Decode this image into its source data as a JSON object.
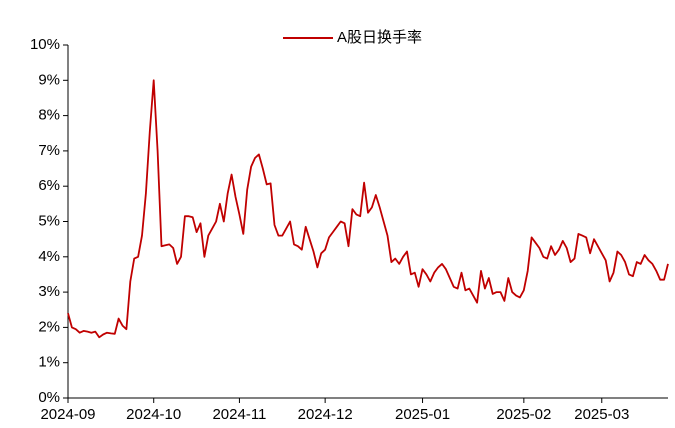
{
  "chart_data": {
    "type": "line",
    "categories": [
      "2024-09",
      null,
      null,
      null,
      null,
      null,
      null,
      null,
      null,
      null,
      null,
      null,
      null,
      null,
      null,
      null,
      null,
      null,
      null,
      null,
      null,
      null,
      "2024-10",
      null,
      null,
      null,
      null,
      null,
      null,
      null,
      null,
      null,
      null,
      null,
      null,
      null,
      null,
      null,
      null,
      null,
      null,
      null,
      null,
      null,
      "2024-11",
      null,
      null,
      null,
      null,
      null,
      null,
      null,
      null,
      null,
      null,
      null,
      null,
      null,
      null,
      null,
      null,
      null,
      null,
      null,
      null,
      null,
      "2024-12",
      null,
      null,
      null,
      null,
      null,
      null,
      null,
      null,
      null,
      null,
      null,
      null,
      null,
      null,
      null,
      null,
      null,
      null,
      null,
      null,
      null,
      null,
      null,
      null,
      "2025-01",
      null,
      null,
      null,
      null,
      null,
      null,
      null,
      null,
      null,
      null,
      null,
      null,
      null,
      null,
      null,
      null,
      null,
      null,
      null,
      null,
      null,
      null,
      null,
      null,
      null,
      "2025-02",
      null,
      null,
      null,
      null,
      null,
      null,
      null,
      null,
      null,
      null,
      null,
      null,
      null,
      null,
      null,
      null,
      null,
      null,
      null,
      "2025-03",
      null,
      null,
      null,
      null,
      null,
      null,
      null,
      null,
      null,
      null,
      null,
      null,
      null,
      null,
      null,
      null,
      null
    ],
    "series": [
      {
        "name": "A股日换手率",
        "color": "#c00000",
        "values": [
          2.4,
          2.0,
          1.95,
          1.85,
          1.9,
          1.88,
          1.85,
          1.88,
          1.72,
          1.8,
          1.85,
          1.83,
          1.82,
          2.25,
          2.05,
          1.95,
          3.3,
          3.95,
          4.0,
          4.6,
          5.8,
          7.55,
          9.0,
          7.0,
          4.3,
          4.33,
          4.35,
          4.25,
          3.8,
          4.0,
          5.15,
          5.15,
          5.12,
          4.7,
          4.95,
          4.0,
          4.6,
          4.8,
          5.0,
          5.5,
          5.0,
          5.8,
          6.33,
          5.7,
          5.2,
          4.65,
          5.9,
          6.55,
          6.8,
          6.9,
          6.5,
          6.05,
          6.08,
          4.9,
          4.6,
          4.6,
          4.8,
          5.0,
          4.35,
          4.3,
          4.2,
          4.85,
          4.5,
          4.15,
          3.7,
          4.1,
          4.2,
          4.55,
          4.7,
          4.85,
          5.0,
          4.95,
          4.3,
          5.35,
          5.2,
          5.15,
          6.1,
          5.25,
          5.4,
          5.75,
          5.4,
          5.0,
          4.6,
          3.85,
          3.95,
          3.8,
          4.0,
          4.15,
          3.5,
          3.55,
          3.15,
          3.65,
          3.5,
          3.3,
          3.55,
          3.7,
          3.8,
          3.65,
          3.4,
          3.15,
          3.1,
          3.55,
          3.05,
          3.1,
          2.9,
          2.7,
          3.6,
          3.1,
          3.4,
          2.95,
          3.0,
          3.0,
          2.75,
          3.4,
          3.0,
          2.9,
          2.85,
          3.05,
          3.6,
          4.55,
          4.4,
          4.25,
          4.0,
          3.95,
          4.3,
          4.05,
          4.2,
          4.45,
          4.25,
          3.85,
          3.95,
          4.65,
          4.6,
          4.55,
          4.1,
          4.5,
          4.3,
          4.1,
          3.9,
          3.3,
          3.55,
          4.15,
          4.05,
          3.85,
          3.5,
          3.45,
          3.85,
          3.8,
          4.05,
          3.9,
          3.8,
          3.6,
          3.35,
          3.35,
          3.8
        ]
      }
    ],
    "ylim": [
      0,
      10
    ],
    "yticks": [
      {
        "value": 0,
        "label": "0%"
      },
      {
        "value": 1,
        "label": "1%"
      },
      {
        "value": 2,
        "label": "2%"
      },
      {
        "value": 3,
        "label": "3%"
      },
      {
        "value": 4,
        "label": "4%"
      },
      {
        "value": 5,
        "label": "5%"
      },
      {
        "value": 6,
        "label": "6%"
      },
      {
        "value": 7,
        "label": "7%"
      },
      {
        "value": 8,
        "label": "8%"
      },
      {
        "value": 9,
        "label": "9%"
      },
      {
        "value": 10,
        "label": "10%"
      }
    ],
    "legend": "top"
  }
}
